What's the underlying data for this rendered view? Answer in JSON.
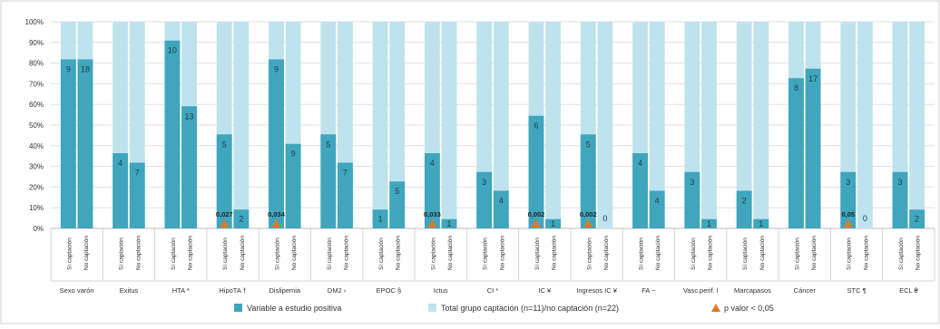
{
  "chart_data": {
    "type": "bar",
    "ylim": [
      0,
      100
    ],
    "y_ticks": [
      "0%",
      "10%",
      "20%",
      "30%",
      "40%",
      "50%",
      "60%",
      "70%",
      "80%",
      "90%",
      "100%"
    ],
    "x_group_labels": [
      "Sexo varón",
      "Exitus",
      "HTA *",
      "HipoTA †",
      "Dislipemia",
      "DM2 ›",
      "EPOC §",
      "Ictus",
      "CI *",
      "IC ¥",
      "Ingresos IC ¥",
      "FA ~",
      "Vasc.perif. l",
      "Marcapasos",
      "Cáncer",
      "STC ¶",
      "ECL ₴"
    ],
    "x_sub_labels": [
      "Sí captación",
      "No captación"
    ],
    "series": [
      {
        "name": "Variable a estudio positiva",
        "color": "#3fa6be",
        "values": [
          [
            81.8,
            81.8
          ],
          [
            36.4,
            31.8
          ],
          [
            90.9,
            59.1
          ],
          [
            45.5,
            9.1
          ],
          [
            81.8,
            40.9
          ],
          [
            45.5,
            31.8
          ],
          [
            9.1,
            22.7
          ],
          [
            36.4,
            4.5
          ],
          [
            27.3,
            18.2
          ],
          [
            54.5,
            4.5
          ],
          [
            45.5,
            0
          ],
          [
            36.4,
            18.2
          ],
          [
            27.3,
            4.5
          ],
          [
            18.2,
            4.5
          ],
          [
            72.7,
            77.3
          ],
          [
            27.3,
            0
          ],
          [
            27.3,
            9.1
          ]
        ],
        "data_labels": [
          [
            "9",
            "18"
          ],
          [
            "4",
            "7"
          ],
          [
            "10",
            "13"
          ],
          [
            "5",
            "2"
          ],
          [
            "9",
            "9"
          ],
          [
            "5",
            "7"
          ],
          [
            "1",
            "5"
          ],
          [
            "4",
            "1"
          ],
          [
            "3",
            "4"
          ],
          [
            "6",
            "1"
          ],
          [
            "5",
            "0"
          ],
          [
            "4",
            "4"
          ],
          [
            "3",
            "1"
          ],
          [
            "2",
            "1"
          ],
          [
            "8",
            "17"
          ],
          [
            "3",
            "0"
          ],
          [
            "3",
            "2"
          ]
        ]
      },
      {
        "name": "Total grupo captación (n=11)/no captación (n=22)",
        "color": "#bfe3ee",
        "values_percent": 100
      }
    ],
    "p_values": [
      {
        "group": 3,
        "label": "0,027"
      },
      {
        "group": 4,
        "label": "0,034"
      },
      {
        "group": 7,
        "label": "0,033"
      },
      {
        "group": 9,
        "label": "0,002"
      },
      {
        "group": 10,
        "label": "0,002"
      },
      {
        "group": 15,
        "label": "0,05"
      }
    ],
    "legend": {
      "items": [
        {
          "label": "Variable a estudio positiva",
          "color": "#3fa6be",
          "marker": "square"
        },
        {
          "label": "Total grupo captación (n=11)/no captación (n=22)",
          "color": "#bfe3ee",
          "marker": "square"
        },
        {
          "label": "p valor < 0,05",
          "color": "#e07b22",
          "marker": "triangle"
        }
      ],
      "placement": "bottom"
    },
    "grid": true
  }
}
